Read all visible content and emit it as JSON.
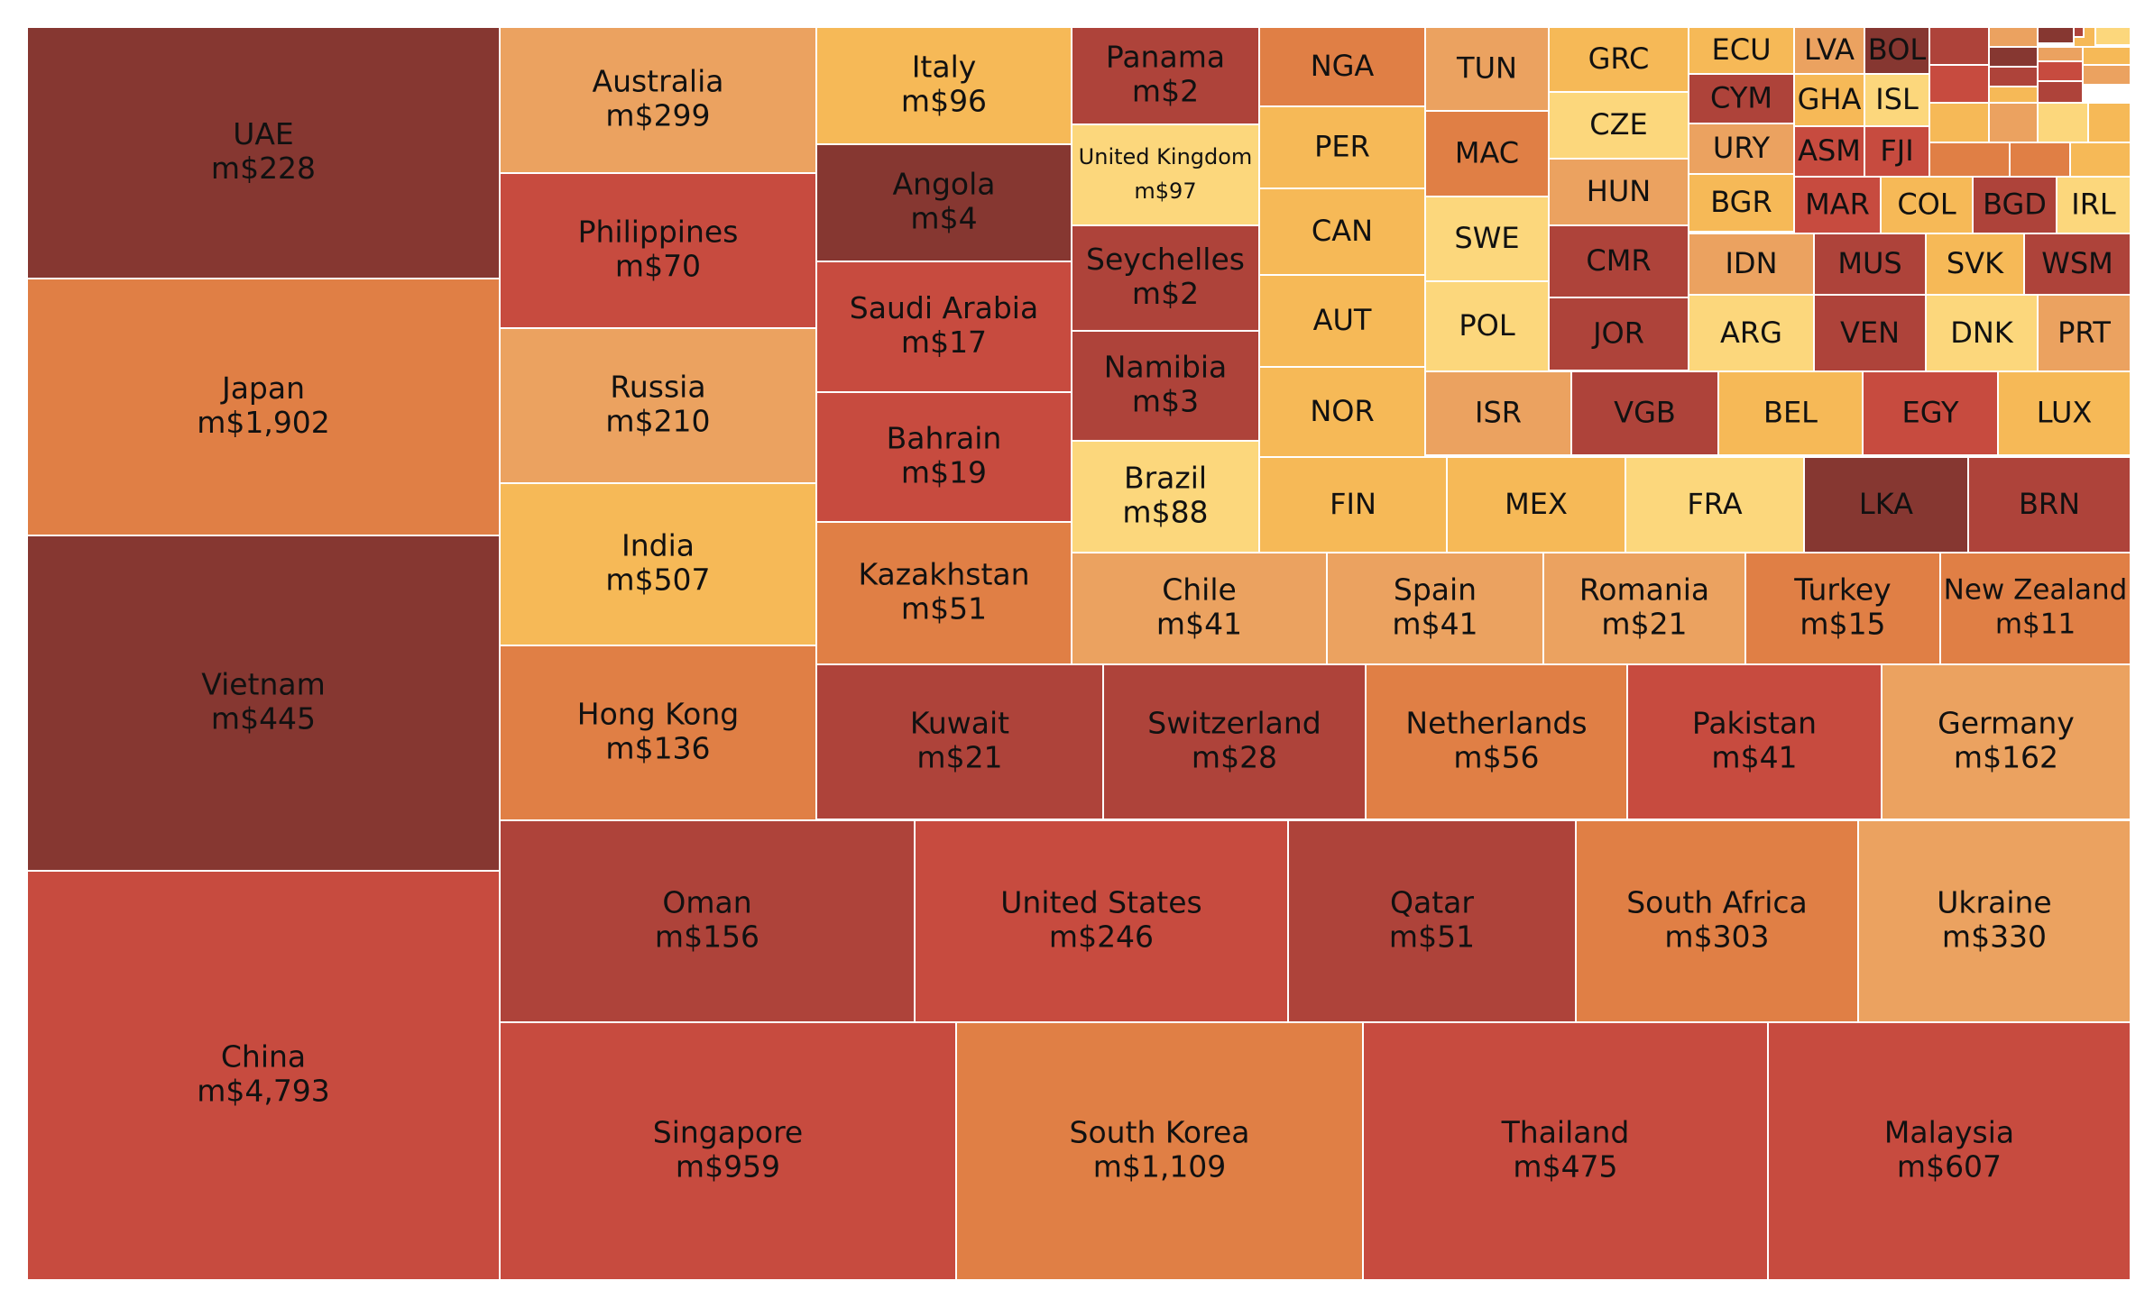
{
  "palette": {
    "dark": "#863731",
    "brick": "#ae433a",
    "red": "#c74b3f",
    "orange": "#e07f45",
    "peach": "#eba260",
    "amber": "#f6b957",
    "yellow": "#fcd77c",
    "border": "#ffffff"
  },
  "chart_data": {
    "type": "treemap",
    "value_prefix": "m$",
    "series": [
      {
        "label": "UAE",
        "value": 228,
        "value_text": "m$228",
        "color": "dark"
      },
      {
        "label": "Japan",
        "value": 1902,
        "value_text": "m$1,902",
        "color": "orange"
      },
      {
        "label": "Vietnam",
        "value": 445,
        "value_text": "m$445",
        "color": "dark"
      },
      {
        "label": "China",
        "value": 4793,
        "value_text": "m$4,793",
        "color": "red"
      },
      {
        "label": "Australia",
        "value": 299,
        "value_text": "m$299",
        "color": "peach"
      },
      {
        "label": "Philippines",
        "value": 70,
        "value_text": "m$70",
        "color": "red"
      },
      {
        "label": "Russia",
        "value": 210,
        "value_text": "m$210",
        "color": "peach"
      },
      {
        "label": "India",
        "value": 507,
        "value_text": "m$507",
        "color": "amber"
      },
      {
        "label": "Hong Kong",
        "value": 136,
        "value_text": "m$136",
        "color": "orange"
      },
      {
        "label": "Italy",
        "value": 96,
        "value_text": "m$96",
        "color": "amber"
      },
      {
        "label": "Angola",
        "value": 4,
        "value_text": "m$4",
        "color": "dark"
      },
      {
        "label": "Saudi Arabia",
        "value": 17,
        "value_text": "m$17",
        "color": "red"
      },
      {
        "label": "Bahrain",
        "value": 19,
        "value_text": "m$19",
        "color": "red"
      },
      {
        "label": "Kazakhstan",
        "value": 51,
        "value_text": "m$51",
        "color": "orange"
      },
      {
        "label": "Panama",
        "value": 2,
        "value_text": "m$2",
        "color": "brick"
      },
      {
        "label": "United Kingdom",
        "value": 97,
        "value_text": "m$97",
        "color": "yellow"
      },
      {
        "label": "Seychelles",
        "value": 2,
        "value_text": "m$2",
        "color": "brick"
      },
      {
        "label": "Namibia",
        "value": 3,
        "value_text": "m$3",
        "color": "brick"
      },
      {
        "label": "Brazil",
        "value": 88,
        "value_text": "m$88",
        "color": "yellow"
      },
      {
        "label": "NGA",
        "value_text": "",
        "color": "orange"
      },
      {
        "label": "PER",
        "value_text": "",
        "color": "amber"
      },
      {
        "label": "CAN",
        "value_text": "",
        "color": "amber"
      },
      {
        "label": "AUT",
        "value_text": "",
        "color": "amber"
      },
      {
        "label": "NOR",
        "value_text": "",
        "color": "amber"
      },
      {
        "label": "TUN",
        "value_text": "",
        "color": "peach"
      },
      {
        "label": "MAC",
        "value_text": "",
        "color": "orange"
      },
      {
        "label": "SWE",
        "value_text": "",
        "color": "yellow"
      },
      {
        "label": "POL",
        "value_text": "",
        "color": "yellow"
      },
      {
        "label": "GRC",
        "value_text": "",
        "color": "amber"
      },
      {
        "label": "CZE",
        "value_text": "",
        "color": "yellow"
      },
      {
        "label": "HUN",
        "value_text": "",
        "color": "peach"
      },
      {
        "label": "CMR",
        "value_text": "",
        "color": "brick"
      },
      {
        "label": "JOR",
        "value_text": "",
        "color": "brick"
      },
      {
        "label": "ECU",
        "value_text": "",
        "color": "amber"
      },
      {
        "label": "CYM",
        "value_text": "",
        "color": "brick"
      },
      {
        "label": "URY",
        "value_text": "",
        "color": "peach"
      },
      {
        "label": "BGR",
        "value_text": "",
        "color": "amber"
      },
      {
        "label": "LVA",
        "value_text": "",
        "color": "peach"
      },
      {
        "label": "GHA",
        "value_text": "",
        "color": "amber"
      },
      {
        "label": "ASM",
        "value_text": "",
        "color": "red"
      },
      {
        "label": "BOL",
        "value_text": "",
        "color": "dark"
      },
      {
        "label": "ISL",
        "value_text": "",
        "color": "yellow"
      },
      {
        "label": "FJI",
        "value_text": "",
        "color": "red"
      },
      {
        "label": "MAR",
        "value_text": "",
        "color": "red"
      },
      {
        "label": "COL",
        "value_text": "",
        "color": "amber"
      },
      {
        "label": "BGD",
        "value_text": "",
        "color": "brick"
      },
      {
        "label": "IRL",
        "value_text": "",
        "color": "yellow"
      },
      {
        "label": "IDN",
        "value_text": "",
        "color": "peach"
      },
      {
        "label": "ARG",
        "value_text": "",
        "color": "yellow"
      },
      {
        "label": "MUS",
        "value_text": "",
        "color": "brick"
      },
      {
        "label": "VEN",
        "value_text": "",
        "color": "brick"
      },
      {
        "label": "SVK",
        "value_text": "",
        "color": "amber"
      },
      {
        "label": "DNK",
        "value_text": "",
        "color": "yellow"
      },
      {
        "label": "WSM",
        "value_text": "",
        "color": "brick"
      },
      {
        "label": "PRT",
        "value_text": "",
        "color": "peach"
      },
      {
        "label": "ISR",
        "value_text": "",
        "color": "peach"
      },
      {
        "label": "VGB",
        "value_text": "",
        "color": "brick"
      },
      {
        "label": "BEL",
        "value_text": "",
        "color": "amber"
      },
      {
        "label": "EGY",
        "value_text": "",
        "color": "red"
      },
      {
        "label": "LUX",
        "value_text": "",
        "color": "amber"
      },
      {
        "label": "FIN",
        "value_text": "",
        "color": "amber"
      },
      {
        "label": "MEX",
        "value_text": "",
        "color": "amber"
      },
      {
        "label": "FRA",
        "value_text": "",
        "color": "yellow"
      },
      {
        "label": "LKA",
        "value_text": "",
        "color": "dark"
      },
      {
        "label": "BRN",
        "value_text": "",
        "color": "brick"
      },
      {
        "label": "Chile",
        "value": 41,
        "value_text": "m$41",
        "color": "peach"
      },
      {
        "label": "Spain",
        "value": 41,
        "value_text": "m$41",
        "color": "peach"
      },
      {
        "label": "Romania",
        "value": 21,
        "value_text": "m$21",
        "color": "peach"
      },
      {
        "label": "Turkey",
        "value": 15,
        "value_text": "m$15",
        "color": "orange"
      },
      {
        "label": "New Zealand",
        "value": 11,
        "value_text": "m$11",
        "color": "orange"
      },
      {
        "label": "Kuwait",
        "value": 21,
        "value_text": "m$21",
        "color": "brick"
      },
      {
        "label": "Switzerland",
        "value": 28,
        "value_text": "m$28",
        "color": "brick"
      },
      {
        "label": "Netherlands",
        "value": 56,
        "value_text": "m$56",
        "color": "orange"
      },
      {
        "label": "Pakistan",
        "value": 41,
        "value_text": "m$41",
        "color": "red"
      },
      {
        "label": "Germany",
        "value": 162,
        "value_text": "m$162",
        "color": "peach"
      },
      {
        "label": "Oman",
        "value": 156,
        "value_text": "m$156",
        "color": "brick"
      },
      {
        "label": "United States",
        "value": 246,
        "value_text": "m$246",
        "color": "red"
      },
      {
        "label": "Qatar",
        "value": 51,
        "value_text": "m$51",
        "color": "brick"
      },
      {
        "label": "South Africa",
        "value": 303,
        "value_text": "m$303",
        "color": "orange"
      },
      {
        "label": "Ukraine",
        "value": 330,
        "value_text": "m$330",
        "color": "peach"
      },
      {
        "label": "Singapore",
        "value": 959,
        "value_text": "m$959",
        "color": "red"
      },
      {
        "label": "South Korea",
        "value": 1109,
        "value_text": "m$1,109",
        "color": "orange"
      },
      {
        "label": "Thailand",
        "value": 475,
        "value_text": "m$475",
        "color": "red"
      },
      {
        "label": "Malaysia",
        "value": 607,
        "value_text": "m$607",
        "color": "red"
      }
    ],
    "unlabeled_cells": [
      {
        "color": "brick"
      },
      {
        "color": "red"
      },
      {
        "color": "peach"
      },
      {
        "color": "dark"
      },
      {
        "color": "amber"
      },
      {
        "color": "yellow"
      },
      {
        "color": "amber"
      },
      {
        "color": "peach"
      },
      {
        "color": "yellow"
      },
      {
        "color": "amber"
      },
      {
        "color": "orange"
      },
      {
        "color": "orange"
      },
      {
        "color": "amber"
      },
      {
        "color": "dark"
      },
      {
        "color": "brick"
      },
      {
        "color": "amber"
      },
      {
        "color": "peach"
      },
      {
        "color": "red"
      },
      {
        "color": "brick"
      },
      {
        "color": "amber"
      },
      {
        "color": "peach"
      },
      {
        "color": "brick"
      },
      {
        "color": "dark"
      }
    ]
  }
}
